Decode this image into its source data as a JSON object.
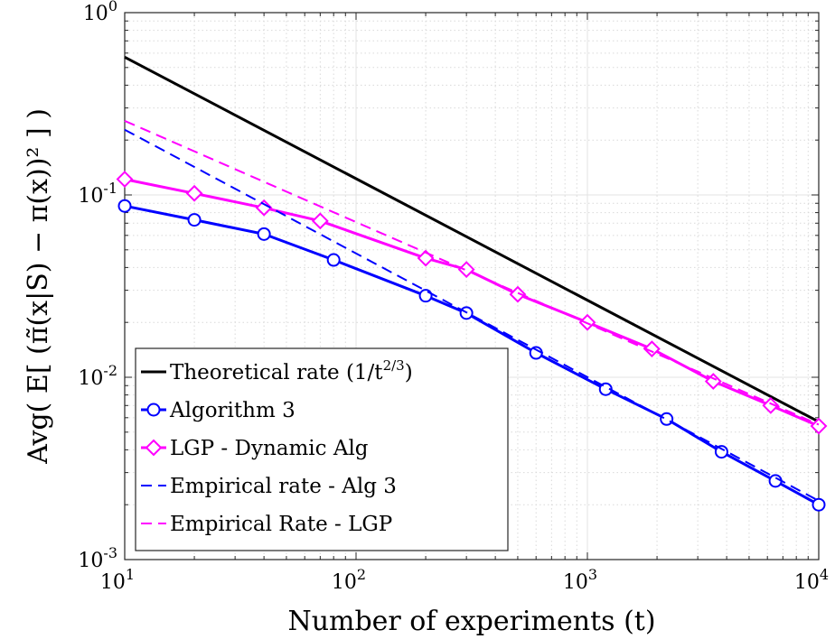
{
  "chart_data": {
    "type": "line",
    "xscale": "log",
    "yscale": "log",
    "xlim": [
      10,
      10000
    ],
    "ylim": [
      0.001,
      1
    ],
    "grid": "major and minor",
    "legend_position": "bottom-left",
    "xlabel": "Number of experiments (t)",
    "ylabel": "Avg( E[ (π̃(x|S) − π(x))² ] )",
    "x_tick_labels": [
      {
        "value": 10,
        "base": "10",
        "exp": "1"
      },
      {
        "value": 100,
        "base": "10",
        "exp": "2"
      },
      {
        "value": 1000,
        "base": "10",
        "exp": "3"
      },
      {
        "value": 10000,
        "base": "10",
        "exp": "4"
      }
    ],
    "y_tick_labels": [
      {
        "value": 0.001,
        "base": "10",
        "exp": "-3"
      },
      {
        "value": 0.01,
        "base": "10",
        "exp": "-2"
      },
      {
        "value": 0.1,
        "base": "10",
        "exp": "-1"
      },
      {
        "value": 1,
        "base": "10",
        "exp": "0"
      }
    ],
    "series": [
      {
        "name": "Theoretical rate (1/t^(2/3))",
        "color": "#000000",
        "style": "solid",
        "marker": "none",
        "x": [
          10,
          10000
        ],
        "y": [
          0.57,
          0.0057
        ]
      },
      {
        "name": "Algorithm 3",
        "color": "#0000ff",
        "style": "solid",
        "marker": "circle",
        "x": [
          10,
          20,
          40,
          80,
          200,
          300,
          600,
          1200,
          2200,
          3800,
          6500,
          10000
        ],
        "y": [
          0.087,
          0.073,
          0.061,
          0.044,
          0.028,
          0.0225,
          0.0136,
          0.0086,
          0.0059,
          0.0039,
          0.0027,
          0.002
        ]
      },
      {
        "name": "LGP - Dynamic Alg",
        "color": "#ff00ff",
        "style": "solid",
        "marker": "diamond",
        "x": [
          10,
          20,
          40,
          70,
          200,
          300,
          500,
          1000,
          1900,
          3500,
          6200,
          10000
        ],
        "y": [
          0.122,
          0.102,
          0.085,
          0.072,
          0.045,
          0.039,
          0.0285,
          0.02,
          0.0143,
          0.0095,
          0.007,
          0.0054
        ]
      },
      {
        "name": "Empirical rate - Alg 3",
        "color": "#0000ff",
        "style": "dashed",
        "marker": "none",
        "x": [
          10,
          10000
        ],
        "y": [
          0.228,
          0.0021
        ]
      },
      {
        "name": "Empirical Rate - LGP",
        "color": "#ff00ff",
        "style": "dashed",
        "marker": "none",
        "x": [
          10,
          10000
        ],
        "y": [
          0.255,
          0.0055
        ]
      }
    ],
    "legend": {
      "entries": [
        {
          "text": "Theoretical rate (1/t",
          "sup": "2/3",
          "text_after": ")"
        },
        {
          "text": "Algorithm 3"
        },
        {
          "text": "LGP - Dynamic Alg"
        },
        {
          "text": "Empirical rate - Alg 3"
        },
        {
          "text": "Empirical Rate - LGP"
        }
      ]
    }
  }
}
